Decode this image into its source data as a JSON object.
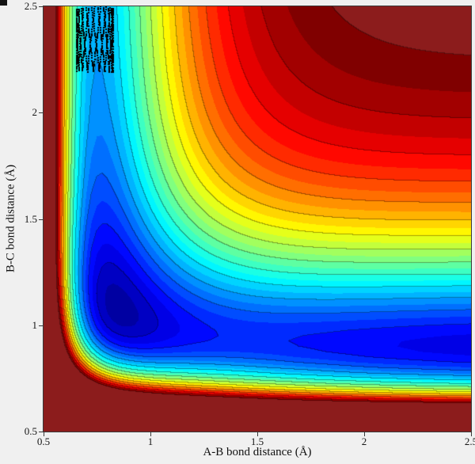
{
  "figure": {
    "background": "#f0f0f0",
    "plot_border_color": "#3a3a3a",
    "corner_mark_color": "#141414"
  },
  "chart_data": {
    "type": "filled_contour",
    "title": "",
    "xlabel": "A-B bond distance (Å)",
    "ylabel": "B-C bond distance (Å)",
    "xlim": [
      0.5,
      2.5
    ],
    "ylim": [
      0.5,
      2.5
    ],
    "xtick_values": [
      0.5,
      1,
      1.5,
      2,
      2.5
    ],
    "xticks": [
      "0.5",
      "1",
      "1.5",
      "2",
      "2.5"
    ],
    "ytick_values": [
      0.5,
      1,
      1.5,
      2,
      2.5
    ],
    "yticks": [
      "0.5",
      "1",
      "1.5",
      "2",
      "2.5"
    ],
    "colormap": "jet",
    "clip_color": "#8c1c1c",
    "levels": {
      "min": -6.6,
      "max": -0.4,
      "step": 0.2
    },
    "grid_points": 81,
    "surface": {
      "model": "V(rAB,rBC) = Morse_AB(rAB) + Morse_BC(rBC) + C*exp(-k*(rAB+rBC))",
      "morse_AB": {
        "D": 4.7,
        "a": 3.5,
        "r0": 0.75
      },
      "morse_BC": {
        "D": 6.0,
        "a": 2.5,
        "r0": 0.9
      },
      "three_body_repulsion": {
        "C": 222.5,
        "k": 2.2
      }
    },
    "contour_lines": {
      "every_n_levels": 2,
      "darken": 0.35
    },
    "trajectory": {
      "marker_color": "#000000",
      "marker_size": 2,
      "x_center": 0.74,
      "x_amplitude": 0.085,
      "y_start": 2.495,
      "y_end": 2.19,
      "steps": 660,
      "phase_step": 0.33,
      "approach_per_step": 0.00049,
      "y_wobble": 0.004
    }
  }
}
